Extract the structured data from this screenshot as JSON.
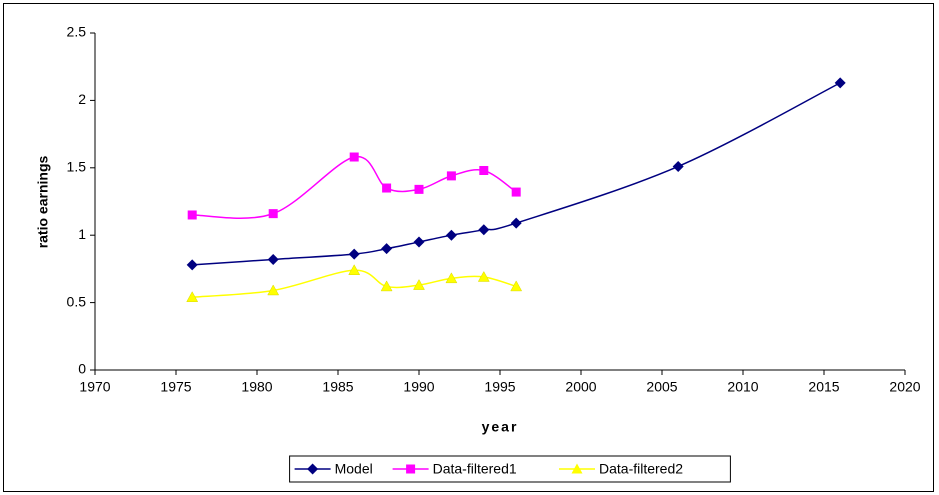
{
  "chart_data": {
    "type": "line",
    "x_label": "year",
    "y_label": "ratio earnings",
    "xlim": [
      1970,
      2020
    ],
    "xticks": [
      1970,
      1975,
      1980,
      1985,
      1990,
      1995,
      2000,
      2005,
      2010,
      2015,
      2020
    ],
    "ylim": [
      0,
      2.5
    ],
    "yticks": [
      0,
      0.5,
      1,
      1.5,
      2,
      2.5
    ],
    "grid": false,
    "smooth": true,
    "legend": "bottom",
    "series": [
      {
        "name": "Model",
        "color": "#000080",
        "marker": "diamond",
        "x": [
          1976,
          1981,
          1986,
          1988,
          1990,
          1992,
          1994,
          1996,
          2006,
          2016
        ],
        "values": [
          0.78,
          0.82,
          0.86,
          0.9,
          0.95,
          1.0,
          1.04,
          1.09,
          1.51,
          2.13
        ]
      },
      {
        "name": "Data-filtered1",
        "color": "#ff00ff",
        "marker": "square",
        "x": [
          1976,
          1981,
          1986,
          1988,
          1990,
          1992,
          1994,
          1996
        ],
        "values": [
          1.15,
          1.16,
          1.58,
          1.35,
          1.34,
          1.44,
          1.48,
          1.32
        ]
      },
      {
        "name": "Data-filtered2",
        "color": "#ffff00",
        "marker": "triangle",
        "x": [
          1976,
          1981,
          1986,
          1988,
          1990,
          1992,
          1994,
          1996
        ],
        "values": [
          0.54,
          0.59,
          0.74,
          0.62,
          0.63,
          0.68,
          0.69,
          0.62
        ]
      }
    ]
  }
}
